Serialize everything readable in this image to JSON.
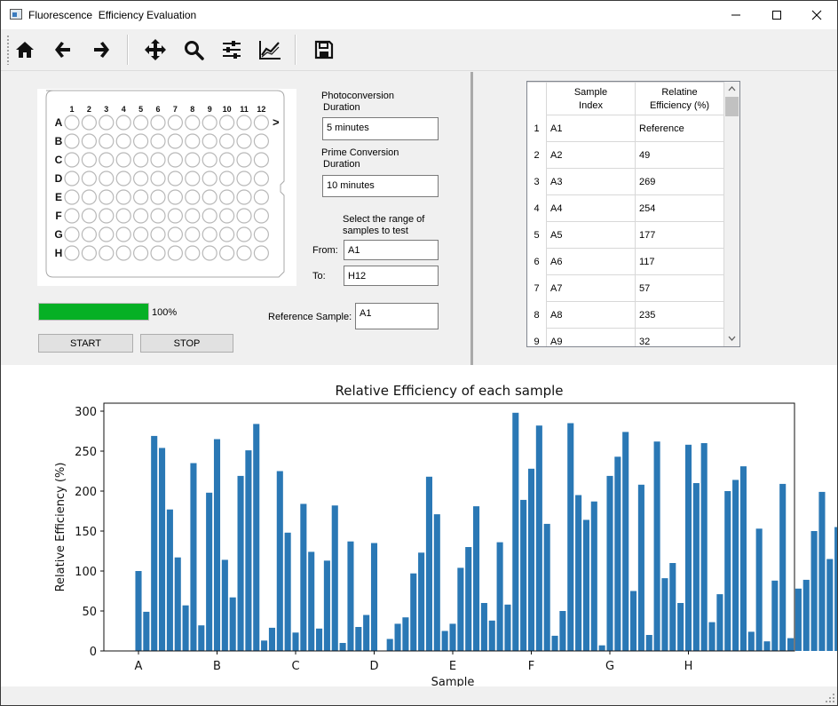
{
  "window": {
    "title": "Fluorescence  Efficiency Evaluation"
  },
  "toolbar": {
    "icons": [
      "home-icon",
      "back-arrow-icon",
      "forward-arrow-icon",
      "pan-icon",
      "zoom-icon",
      "configure-subplots-icon",
      "edit-axes-icon",
      "save-icon"
    ]
  },
  "plate": {
    "cols": [
      "1",
      "2",
      "3",
      "4",
      "5",
      "6",
      "7",
      "8",
      "9",
      "10",
      "11",
      "12"
    ],
    "rows": [
      "A",
      "B",
      "C",
      "D",
      "E",
      "F",
      "G",
      "H"
    ],
    "arrow": ">"
  },
  "form": {
    "photo_label_1": "Photoconversion",
    "photo_label_2": "Duration",
    "photo_value": "5 minutes",
    "prime_label_1": "Prime Conversion",
    "prime_label_2": "Duration",
    "prime_value": "10 minutes",
    "range_label_1": "Select the range of",
    "range_label_2": "samples to test",
    "from_label": "From:",
    "from_value": "A1",
    "to_label": "To:",
    "to_value": "H12",
    "ref_label": "Reference Sample:",
    "ref_value": "A1"
  },
  "progress": {
    "value": 1.0,
    "text": "100%",
    "color": "#06b025"
  },
  "buttons": {
    "start": "START",
    "stop": "STOP"
  },
  "table": {
    "headers": [
      [
        "Sample",
        "Index"
      ],
      [
        "Relatine",
        "Efficiency (%)"
      ]
    ],
    "rows": [
      [
        "1",
        "A1",
        "Reference"
      ],
      [
        "2",
        "A2",
        "49"
      ],
      [
        "3",
        "A3",
        "269"
      ],
      [
        "4",
        "A4",
        "254"
      ],
      [
        "5",
        "A5",
        "177"
      ],
      [
        "6",
        "A6",
        "117"
      ],
      [
        "7",
        "A7",
        "57"
      ],
      [
        "8",
        "A8",
        "235"
      ],
      [
        "9",
        "A9",
        "32"
      ]
    ]
  },
  "chart_data": {
    "type": "bar",
    "title": "Relative Efficiency of each sample",
    "xlabel": "Sample",
    "ylabel": "Relative Efficiency (%)",
    "ylim": [
      0,
      310
    ],
    "yticks": [
      0,
      50,
      100,
      150,
      200,
      250,
      300
    ],
    "xtick_labels": [
      "A",
      "B",
      "C",
      "D",
      "E",
      "F",
      "G",
      "H"
    ],
    "color": "#2a78b5",
    "values": [
      100,
      49,
      269,
      254,
      177,
      117,
      57,
      235,
      32,
      198,
      265,
      114,
      67,
      219,
      251,
      284,
      13,
      29,
      225,
      148,
      23,
      184,
      124,
      28,
      113,
      182,
      10,
      137,
      30,
      45,
      135,
      0,
      15,
      34,
      42,
      97,
      123,
      218,
      171,
      25,
      34,
      104,
      130,
      181,
      60,
      38,
      136,
      58,
      298,
      189,
      228,
      282,
      159,
      19,
      50,
      285,
      195,
      164,
      187,
      7,
      219,
      243,
      274,
      75,
      208,
      20,
      262,
      91,
      110,
      60,
      258,
      210,
      260,
      36,
      71,
      200,
      214,
      231,
      24,
      153,
      12,
      88,
      209,
      16,
      78,
      89,
      150,
      199,
      115,
      155,
      38,
      41,
      48,
      279,
      138,
      117
    ]
  }
}
